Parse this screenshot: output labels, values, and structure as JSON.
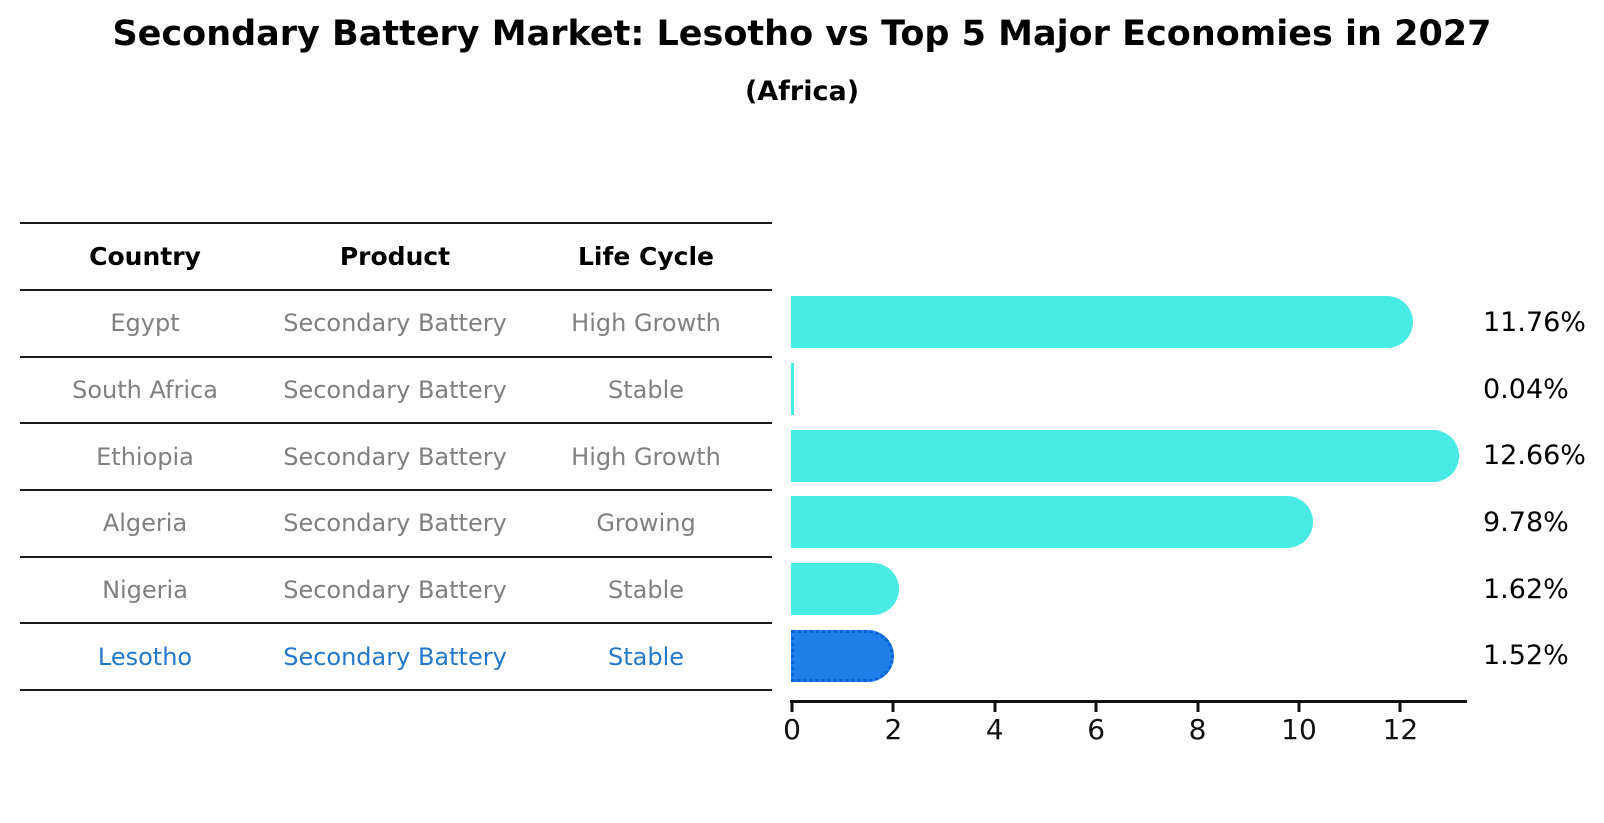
{
  "title": "Secondary Battery Market: Lesotho vs Top 5 Major Economies in 2027",
  "subtitle": "(Africa)",
  "table": {
    "columns": [
      "Country",
      "Product",
      "Life Cycle"
    ],
    "rows": [
      {
        "country": "Egypt",
        "product": "Secondary Battery",
        "life_cycle": "High Growth",
        "highlight": false
      },
      {
        "country": "South Africa",
        "product": "Secondary Battery",
        "life_cycle": "Stable",
        "highlight": false
      },
      {
        "country": "Ethiopia",
        "product": "Secondary Battery",
        "life_cycle": "High Growth",
        "highlight": false
      },
      {
        "country": "Algeria",
        "product": "Secondary Battery",
        "life_cycle": "Growing",
        "highlight": false
      },
      {
        "country": "Nigeria",
        "product": "Secondary Battery",
        "life_cycle": "Stable",
        "highlight": false
      },
      {
        "country": "Lesotho",
        "product": "Secondary Battery",
        "life_cycle": "Stable",
        "highlight": true
      }
    ]
  },
  "chart_data": {
    "type": "bar",
    "orientation": "horizontal",
    "title": "Secondary Battery Market: Lesotho vs Top 5 Major Economies in 2027",
    "subtitle": "(Africa)",
    "categories": [
      "Egypt",
      "South Africa",
      "Ethiopia",
      "Algeria",
      "Nigeria",
      "Lesotho"
    ],
    "values": [
      11.76,
      0.04,
      12.66,
      9.78,
      1.62,
      1.52
    ],
    "value_labels": [
      "11.76%",
      "0.04%",
      "12.66%",
      "9.78%",
      "1.62%",
      "1.52%"
    ],
    "xlabel": "",
    "ylabel": "",
    "xlim": [
      0,
      13.35
    ],
    "x_ticks": [
      0,
      2,
      4,
      6,
      8,
      10,
      12
    ],
    "grid": false,
    "legend": false,
    "highlight_index": 5,
    "bar_color": "#47EBE4",
    "highlight_bar_color": "#1E80EA",
    "highlight_border_color": "#0C5FD6"
  },
  "colors": {
    "background": "#FFFFFF",
    "title_text": "#000000",
    "table_line": "#1A1A1A",
    "table_header_text": "#000000",
    "table_row_text": "#808080",
    "highlight_text": "#2478C8",
    "axis": "#111111"
  }
}
